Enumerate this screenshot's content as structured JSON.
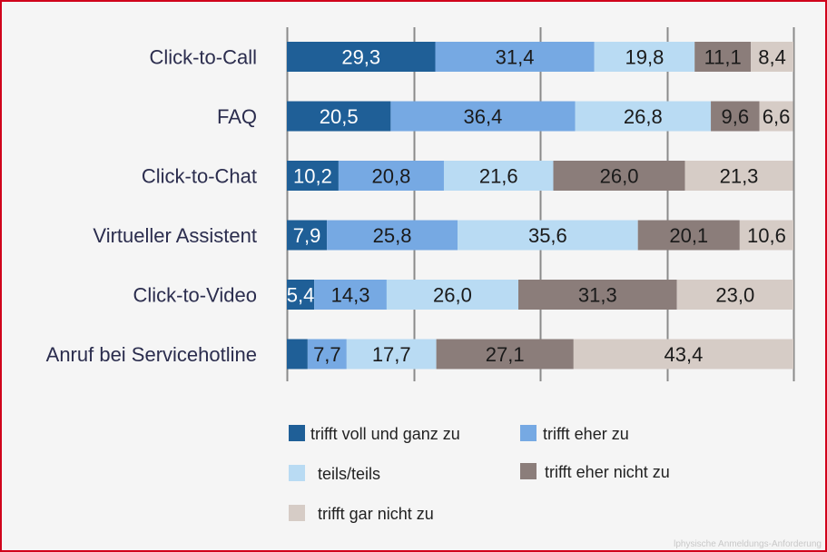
{
  "chart_data": {
    "type": "bar",
    "orientation": "horizontal",
    "stacked": true,
    "percent_stacked": true,
    "title": "",
    "categories": [
      "Click-to-Call",
      "FAQ",
      "Click-to-Chat",
      "Virtueller Assistent",
      "Click-to-Video",
      "Anruf bei Servicehotline"
    ],
    "series": [
      {
        "name": "trifft voll und ganz zu",
        "color": "#1f5f97",
        "label_color": "#ffffff",
        "values": [
          29.3,
          20.5,
          10.2,
          7.9,
          5.4,
          4.1
        ],
        "labels": [
          "29,3",
          "20,5",
          "10,2",
          "7,9",
          "5,4",
          ""
        ]
      },
      {
        "name": "trifft eher zu",
        "color": "#76a9e3",
        "label_color": "#1a1a1a",
        "values": [
          31.4,
          36.4,
          20.8,
          25.8,
          14.3,
          7.7
        ],
        "labels": [
          "31,4",
          "36,4",
          "20,8",
          "25,8",
          "14,3",
          "7,7"
        ]
      },
      {
        "name": "teils/teils",
        "color": "#b9dbf3",
        "label_color": "#1a1a1a",
        "values": [
          19.8,
          26.8,
          21.6,
          35.6,
          26.0,
          17.7
        ],
        "labels": [
          "19,8",
          "26,8",
          "21,6",
          "35,6",
          "26,0",
          "17,7"
        ]
      },
      {
        "name": "trifft eher nicht zu",
        "color": "#8b7d7a",
        "label_color": "#1a1a1a",
        "values": [
          11.1,
          9.6,
          26.0,
          20.1,
          31.3,
          27.1
        ],
        "labels": [
          "11,1",
          "9,6",
          "26,0",
          "20,1",
          "31,3",
          "27,1"
        ]
      },
      {
        "name": "trifft gar nicht zu",
        "color": "#d6ccc6",
        "label_color": "#1a1a1a",
        "values": [
          8.4,
          6.6,
          21.3,
          10.6,
          23.0,
          43.4
        ],
        "labels": [
          "8,4",
          "6,6",
          "21,3",
          "10,6",
          "23,0",
          "43,4"
        ]
      }
    ],
    "xlim": [
      0,
      100
    ],
    "grid": true,
    "legend_position": "bottom"
  },
  "watermark": "lphysische Anmeldungs-Anforderung"
}
